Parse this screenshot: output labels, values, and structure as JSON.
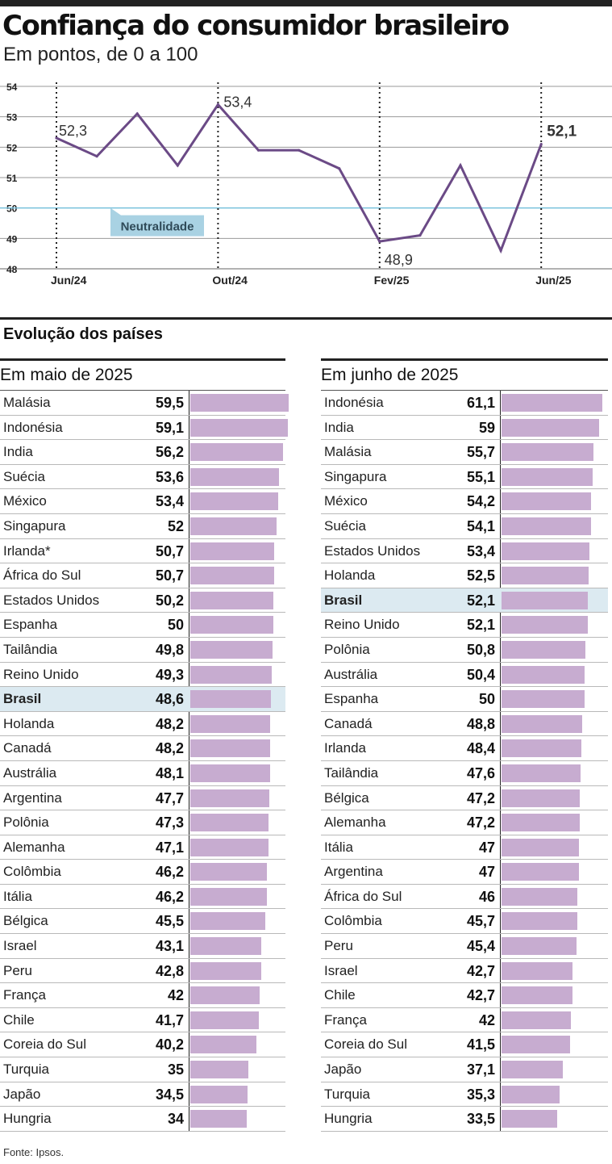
{
  "header": {
    "title": "Confiança do consumidor brasileiro",
    "subtitle": "Em pontos, de 0 a 100"
  },
  "chart_data": [
    {
      "type": "line",
      "yticks": [
        48,
        49,
        50,
        51,
        52,
        53,
        54
      ],
      "ylim": [
        48,
        54
      ],
      "neutral_value": 50,
      "neutral_label": "Neutralidade",
      "xtick_labels": [
        {
          "label": "Jun/24",
          "index": 0
        },
        {
          "label": "Out/24",
          "index": 4
        },
        {
          "label": "Fev/25",
          "index": 8
        },
        {
          "label": "Jun/25",
          "index": 12
        }
      ],
      "values": [
        52.3,
        51.7,
        53.1,
        51.4,
        53.4,
        51.9,
        51.9,
        51.3,
        48.9,
        49.1,
        51.4,
        48.6,
        52.1
      ],
      "data_labels": [
        {
          "index": 0,
          "text": "52,3"
        },
        {
          "index": 4,
          "text": "53,4"
        },
        {
          "index": 8,
          "text": "48,9"
        },
        {
          "index": 12,
          "text": "52,1"
        }
      ],
      "line_color": "#6b4a86",
      "neutral_color": "#79c1dc",
      "grid": true
    },
    {
      "type": "bar",
      "title": "Em maio de 2025",
      "highlight": "Brasil",
      "categories": [
        "Malásia",
        "Indonésia",
        "India",
        "Suécia",
        "México",
        "Singapura",
        "Irlanda*",
        "África do Sul",
        "Estados Unidos",
        "Espanha",
        "Tailândia",
        "Reino Unido",
        "Brasil",
        "Holanda",
        "Canadá",
        "Austrália",
        "Argentina",
        "Polônia",
        "Alemanha",
        "Colômbia",
        "Itália",
        "Bélgica",
        "Israel",
        "Peru",
        "França",
        "Chile",
        "Coreia do Sul",
        "Turquia",
        "Japão",
        "Hungria"
      ],
      "values": [
        59.5,
        59.1,
        56.2,
        53.6,
        53.4,
        52,
        50.7,
        50.7,
        50.2,
        50,
        49.8,
        49.3,
        48.6,
        48.2,
        48.2,
        48.1,
        47.7,
        47.3,
        47.1,
        46.2,
        46.2,
        45.5,
        43.1,
        42.8,
        42,
        41.7,
        40.2,
        35,
        34.5,
        34
      ],
      "value_labels": [
        "59,5",
        "59,1",
        "56,2",
        "53,6",
        "53,4",
        "52",
        "50,7",
        "50,7",
        "50,2",
        "50",
        "49,8",
        "49,3",
        "48,6",
        "48,2",
        "48,2",
        "48,1",
        "47,7",
        "47,3",
        "47,1",
        "46,2",
        "46,2",
        "45,5",
        "43,1",
        "42,8",
        "42",
        "41,7",
        "40,2",
        "35",
        "34,5",
        "34"
      ],
      "bar_color": "#c7acd0"
    },
    {
      "type": "bar",
      "title": "Em junho de 2025",
      "highlight": "Brasil",
      "categories": [
        "Indonésia",
        "India",
        "Malásia",
        "Singapura",
        "México",
        "Suécia",
        "Estados Unidos",
        "Holanda",
        "Brasil",
        "Reino Unido",
        "Polônia",
        "Austrália",
        "Espanha",
        "Canadá",
        "Irlanda",
        "Tailândia",
        "Bélgica",
        "Alemanha",
        "Itália",
        "Argentina",
        "África do Sul",
        "Colômbia",
        "Peru",
        "Israel",
        "Chile",
        "França",
        "Coreia do Sul",
        "Japão",
        "Turquia",
        "Hungria"
      ],
      "values": [
        61.1,
        59,
        55.7,
        55.1,
        54.2,
        54.1,
        53.4,
        52.5,
        52.1,
        52.1,
        50.8,
        50.4,
        50,
        48.8,
        48.4,
        47.6,
        47.2,
        47.2,
        47,
        47,
        46,
        45.7,
        45.4,
        42.7,
        42.7,
        42,
        41.5,
        37.1,
        35.3,
        33.5
      ],
      "value_labels": [
        "61,1",
        "59",
        "55,7",
        "55,1",
        "54,2",
        "54,1",
        "53,4",
        "52,5",
        "52,1",
        "52,1",
        "50,8",
        "50,4",
        "50",
        "48,8",
        "48,4",
        "47,6",
        "47,2",
        "47,2",
        "47",
        "47",
        "46",
        "45,7",
        "45,4",
        "42,7",
        "42,7",
        "42",
        "41,5",
        "37,1",
        "35,3",
        "33,5"
      ],
      "bar_color": "#c7acd0"
    }
  ],
  "section": {
    "title": "Evolução dos países"
  },
  "footer": {
    "source": "Fonte: Ipsos."
  },
  "colors": {
    "highlight_row": "#dceaf1",
    "neutral_box": "#a9d2e3"
  }
}
